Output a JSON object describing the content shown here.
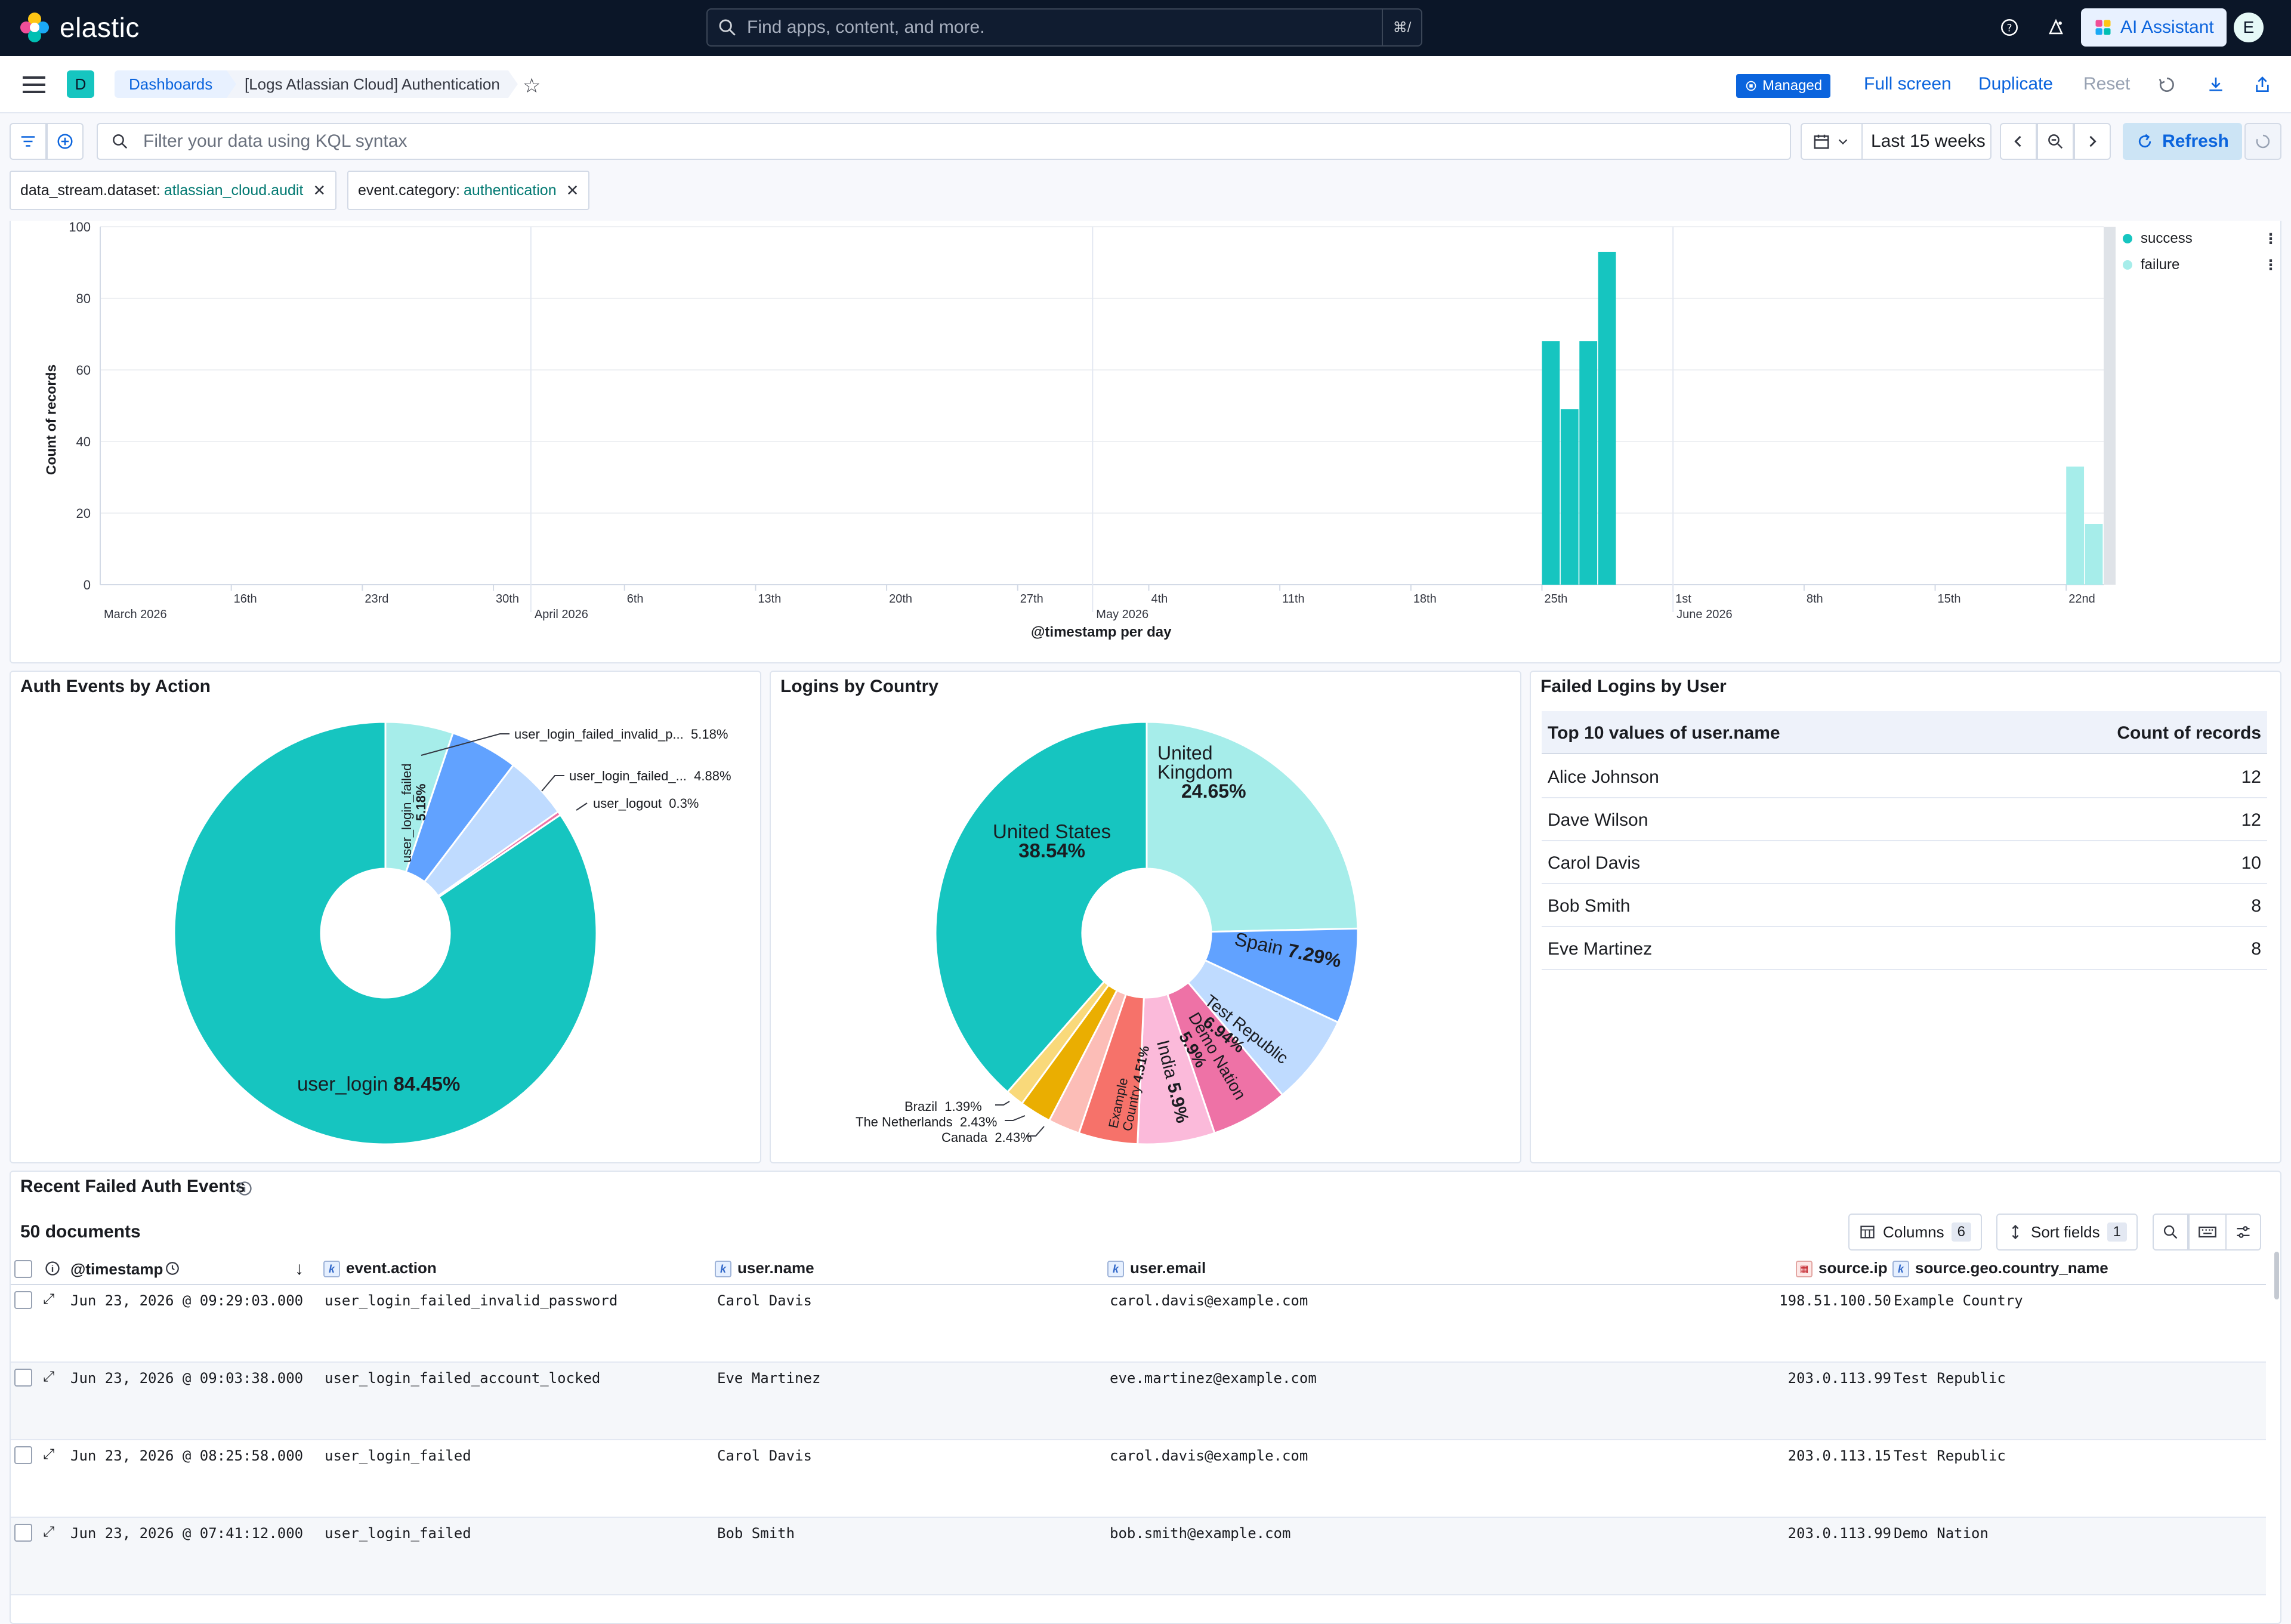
{
  "topbar": {
    "brand": "elastic",
    "search_placeholder": "Find apps, content, and more.",
    "search_shortcut": "⌘/",
    "ai_assistant_label": "AI Assistant",
    "avatar_initial": "E"
  },
  "header": {
    "space_initial": "D",
    "breadcrumb_dashboards": "Dashboards",
    "breadcrumb_current": "[Logs Atlassian Cloud] Authentication",
    "managed_label": "Managed",
    "full_screen_label": "Full screen",
    "duplicate_label": "Duplicate",
    "reset_label": "Reset"
  },
  "query": {
    "kql_placeholder": "Filter your data using KQL syntax",
    "date_range": "Last 15 weeks",
    "refresh_label": "Refresh"
  },
  "filters": [
    {
      "field": "data_stream.dataset:",
      "value": "atlassian_cloud.audit"
    },
    {
      "field": "event.category:",
      "value": "authentication"
    }
  ],
  "timechart": {
    "ylabel": "Count of records",
    "xlabel": "@timestamp per day",
    "yticks": [
      "100",
      "80",
      "60",
      "40",
      "20",
      "0"
    ],
    "legend": [
      "success",
      "failure"
    ],
    "colors": {
      "success": "#16c5c0",
      "failure": "#a6edea"
    },
    "xticks": [
      "16th",
      "23rd",
      "30th",
      "6th",
      "13th",
      "20th",
      "27th",
      "4th",
      "11th",
      "18th",
      "25th",
      "1st",
      "8th",
      "15th",
      "22nd"
    ],
    "month_labels": [
      "March 2026",
      "April 2026",
      "May 2026",
      "June 2026"
    ]
  },
  "chart_data": [
    {
      "type": "bar",
      "stacked": true,
      "ylabel": "Count of records",
      "xlabel": "@timestamp per day",
      "ylim": [
        0,
        100
      ],
      "x": [
        "2026-05-25",
        "2026-05-26",
        "2026-05-27",
        "2026-05-28",
        "2026-06-22",
        "2026-06-23"
      ],
      "series": [
        {
          "name": "success",
          "values": [
            68,
            49,
            68,
            93,
            0,
            0
          ]
        },
        {
          "name": "failure",
          "values": [
            0,
            0,
            0,
            0,
            33,
            17
          ]
        }
      ],
      "legend": "top-right",
      "grid": true
    },
    {
      "type": "pie",
      "donut": true,
      "title": "Auth Events by Action",
      "slices": [
        {
          "label": "user_login",
          "value": 84.45,
          "color": "#16c5c0"
        },
        {
          "label": "user_login_failed",
          "value": 5.18,
          "color": "#a6edea"
        },
        {
          "label": "user_login_failed_invalid_p...",
          "value": 5.18,
          "color": "#61a2ff"
        },
        {
          "label": "user_login_failed_...",
          "value": 4.88,
          "color": "#bfdbff"
        },
        {
          "label": "user_logout",
          "value": 0.3,
          "color": "#ee72a6"
        }
      ]
    },
    {
      "type": "pie",
      "donut": true,
      "title": "Logins by Country",
      "slices": [
        {
          "label": "United Kingdom",
          "value": 24.65,
          "color": "#a6edea"
        },
        {
          "label": "Spain",
          "value": 7.29,
          "color": "#61a2ff"
        },
        {
          "label": "Test Republic",
          "value": 6.94,
          "color": "#bfdbff"
        },
        {
          "label": "Demo Nation",
          "value": 5.9,
          "color": "#ee72a6"
        },
        {
          "label": "India",
          "value": 5.9,
          "color": "#fbbada"
        },
        {
          "label": "Example Country",
          "value": 4.51,
          "color": "#f6726a"
        },
        {
          "label": "Canada",
          "value": 2.43,
          "color": "#fcbdb7"
        },
        {
          "label": "The Netherlands",
          "value": 2.43,
          "color": "#eaae01"
        },
        {
          "label": "Brazil",
          "value": 1.39,
          "color": "#f9d97a"
        },
        {
          "label": "United States",
          "value": 38.54,
          "color": "#16c5c0"
        }
      ]
    }
  ],
  "pie_action": {
    "title": "Auth Events by Action",
    "label_main": "user_login",
    "label_main_pct": "84.45%",
    "label_inner": "user_login_failed",
    "label_inner_pct": "5.18%",
    "callouts": [
      {
        "name": "user_login_failed_invalid_p...",
        "pct": "5.18%"
      },
      {
        "name": "user_login_failed_...",
        "pct": "4.88%"
      },
      {
        "name": "user_logout",
        "pct": "0.3%"
      }
    ]
  },
  "pie_country": {
    "title": "Logins by Country",
    "us_name": "United States",
    "us_pct": "38.54%",
    "uk_name_1": "United",
    "uk_name_2": "Kingdom",
    "uk_pct": "24.65%",
    "spain_name": "Spain",
    "spain_pct": "7.29%",
    "test_name": "Test Republic",
    "test_pct": "6.94%",
    "demo_name": "Demo Nation",
    "demo_pct": "5.9%",
    "india_name": "India",
    "india_pct": "5.9%",
    "example_name_1": "Example",
    "example_name_2": "Country",
    "example_pct": "4.51%",
    "callouts": [
      {
        "name": "Brazil",
        "pct": "1.39%"
      },
      {
        "name": "The Netherlands",
        "pct": "2.43%"
      },
      {
        "name": "Canada",
        "pct": "2.43%"
      }
    ]
  },
  "failed_logins": {
    "title": "Failed Logins by User",
    "col1": "Top 10 values of user.name",
    "col2": "Count of records",
    "rows": [
      {
        "name": "Alice Johnson",
        "count": "12"
      },
      {
        "name": "Dave Wilson",
        "count": "12"
      },
      {
        "name": "Carol Davis",
        "count": "10"
      },
      {
        "name": "Bob Smith",
        "count": "8"
      },
      {
        "name": "Eve Martinez",
        "count": "8"
      }
    ]
  },
  "recent": {
    "title": "Recent Failed Auth Events",
    "doc_count": "50 documents",
    "columns_label": "Columns",
    "columns_count": "6",
    "sort_label": "Sort fields",
    "sort_count": "1",
    "headers": [
      "@timestamp",
      "event.action",
      "user.name",
      "user.email",
      "source.ip",
      "source.geo.country_name"
    ],
    "rows": [
      {
        "ts": "Jun 23, 2026 @ 09:29:03.000",
        "action": "user_login_failed_invalid_password",
        "user": "Carol Davis",
        "email": "carol.davis@example.com",
        "ip": "198.51.100.50",
        "country": "Example Country"
      },
      {
        "ts": "Jun 23, 2026 @ 09:03:38.000",
        "action": "user_login_failed_account_locked",
        "user": "Eve Martinez",
        "email": "eve.martinez@example.com",
        "ip": "203.0.113.99",
        "country": "Test Republic"
      },
      {
        "ts": "Jun 23, 2026 @ 08:25:58.000",
        "action": "user_login_failed",
        "user": "Carol Davis",
        "email": "carol.davis@example.com",
        "ip": "203.0.113.15",
        "country": "Test Republic"
      },
      {
        "ts": "Jun 23, 2026 @ 07:41:12.000",
        "action": "user_login_failed",
        "user": "Bob Smith",
        "email": "bob.smith@example.com",
        "ip": "203.0.113.99",
        "country": "Demo Nation"
      }
    ]
  }
}
